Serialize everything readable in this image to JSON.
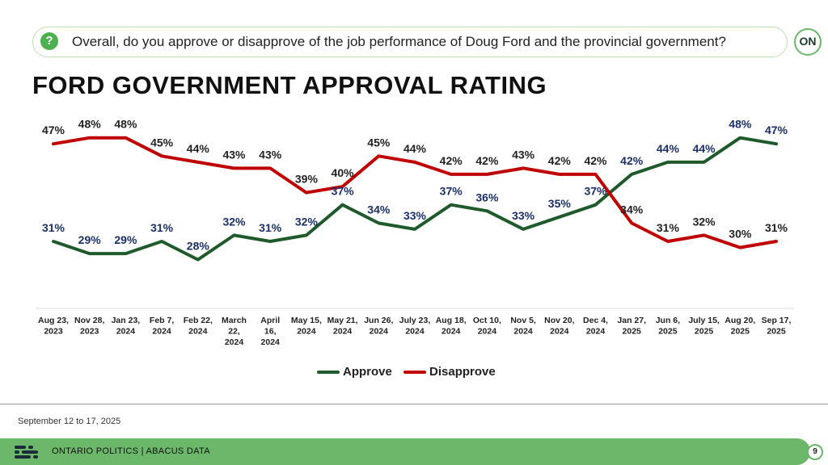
{
  "header": {
    "question": "Overall, do you approve or disapprove of the job performance of Doug Ford and the provincial government?",
    "question_icon": "question-bubble-icon",
    "logo_text": "ON"
  },
  "chart_data": {
    "type": "line",
    "title": "FORD GOVERNMENT APPROVAL RATING",
    "categories": [
      [
        "Aug 23,",
        "2023"
      ],
      [
        "Nov 28,",
        "2023"
      ],
      [
        "Jan 23,",
        "2024"
      ],
      [
        "Feb 7,",
        "2024"
      ],
      [
        "Feb 22,",
        "2024"
      ],
      [
        "March",
        "22,",
        "2024"
      ],
      [
        "April",
        "16,",
        "2024"
      ],
      [
        "May 15,",
        "2024"
      ],
      [
        "May 21,",
        "2024"
      ],
      [
        "Jun 26,",
        "2024"
      ],
      [
        "July 23,",
        "2024"
      ],
      [
        "Aug 18,",
        "2024"
      ],
      [
        "Oct 10,",
        "2024"
      ],
      [
        "Nov 5,",
        "2024"
      ],
      [
        "Nov 20,",
        "2024"
      ],
      [
        "Dec 4,",
        "2024"
      ],
      [
        "Jan 27,",
        "2025"
      ],
      [
        "Jun 6,",
        "2025"
      ],
      [
        "July 15,",
        "2025"
      ],
      [
        "Aug 20,",
        "2025"
      ],
      [
        "Sep 17,",
        "2025"
      ]
    ],
    "series": [
      {
        "name": "Approve",
        "color": "#1e5a2c",
        "label_color": "#1a2f6b",
        "values": [
          31,
          29,
          29,
          31,
          28,
          32,
          31,
          32,
          37,
          34,
          33,
          37,
          36,
          33,
          35,
          37,
          42,
          44,
          44,
          48,
          47
        ]
      },
      {
        "name": "Disapprove",
        "color": "#c00000",
        "label_color": "#222222",
        "values": [
          47,
          48,
          48,
          45,
          44,
          43,
          43,
          39,
          40,
          45,
          44,
          42,
          42,
          43,
          42,
          42,
          34,
          31,
          32,
          30,
          31
        ]
      }
    ],
    "value_suffix": "%",
    "legend_position": "bottom",
    "grid": false
  },
  "footer": {
    "date_range": "September 12 to 17, 2025",
    "brand": "ONTARIO POLITICS  |  ABACUS DATA",
    "page_number": "9"
  }
}
